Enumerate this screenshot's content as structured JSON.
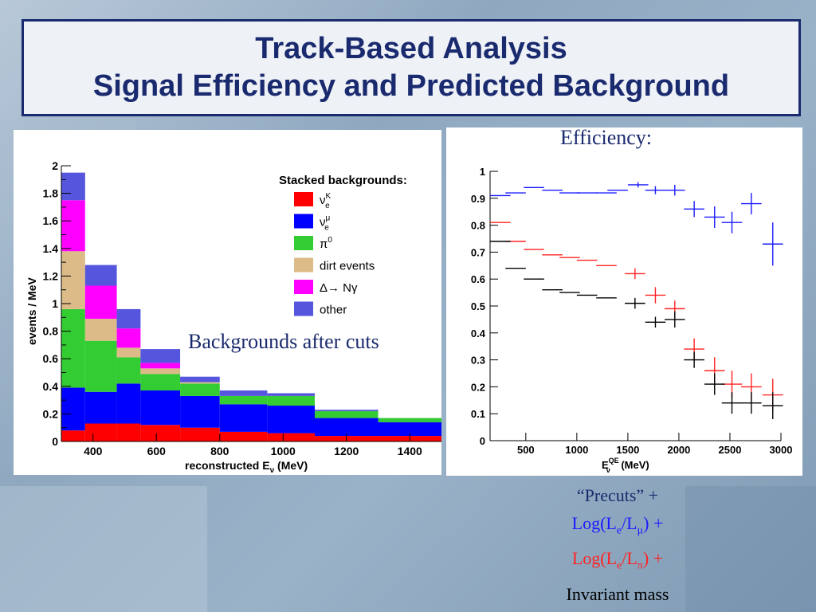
{
  "slide": {
    "title_line1": "Track-Based Analysis",
    "title_line2": "Signal Efficiency and Predicted Background"
  },
  "labels": {
    "efficiency": "Efficiency:",
    "backgrounds": "Backgrounds after cuts",
    "precuts": "“Precuts” +",
    "log_mu_pre": "Log(L",
    "log_mu_e": "e",
    "log_mu_mid": "/L",
    "log_mu_sub": "μ",
    "log_mu_post": ") +",
    "log_pi_pre": "Log(L",
    "log_pi_e": "e",
    "log_pi_mid": "/L",
    "log_pi_sub": "π",
    "log_pi_post": ") +",
    "invariant": "Invariant mass"
  },
  "colors": {
    "title": "#1a2a6e",
    "nue_K": "#ff0000",
    "nue_mu": "#0000ff",
    "pi0": "#33cc33",
    "dirt": "#ddbb88",
    "delta": "#ff00ff",
    "other": "#5555dd",
    "eff_blue": "#1a1aff",
    "eff_red": "#ff2222",
    "eff_black": "#000000"
  },
  "chart_data": [
    {
      "type": "bar",
      "stacked": true,
      "xlabel": "reconstructed E",
      "xlabel_sub": "ν",
      "xlabel_unit": " (MeV)",
      "ylabel": "events / MeV",
      "xlim": [
        300,
        1500
      ],
      "ylim": [
        0,
        2.0
      ],
      "xticks": [
        "400",
        "600",
        "800",
        "1000",
        "1200",
        "1400"
      ],
      "yticks": [
        "0",
        "0.2",
        "0.4",
        "0.6",
        "0.8",
        "1",
        "1.2",
        "1.4",
        "1.6",
        "1.8",
        "2"
      ],
      "legend_title": "Stacked backgrounds:",
      "legend_position": "top-right",
      "bin_edges": [
        300,
        375,
        475,
        550,
        675,
        800,
        950,
        1100,
        1300,
        1500
      ],
      "series": [
        {
          "name": "ν_e^K",
          "legend_main": "ν",
          "legend_sub": "e",
          "legend_sup": "K",
          "values": [
            0.08,
            0.13,
            0.13,
            0.12,
            0.1,
            0.07,
            0.06,
            0.04,
            0.04
          ]
        },
        {
          "name": "ν_e^μ",
          "legend_main": "ν",
          "legend_sub": "e",
          "legend_sup": "μ",
          "values": [
            0.31,
            0.23,
            0.29,
            0.25,
            0.23,
            0.2,
            0.2,
            0.13,
            0.1
          ]
        },
        {
          "name": "π0",
          "legend_main": "π",
          "legend_sub": "",
          "legend_sup": "0",
          "values": [
            0.57,
            0.37,
            0.19,
            0.12,
            0.09,
            0.06,
            0.07,
            0.05,
            0.03
          ]
        },
        {
          "name": "dirt events",
          "legend_main": "dirt events",
          "legend_sub": "",
          "legend_sup": "",
          "values": [
            0.42,
            0.16,
            0.07,
            0.04,
            0.01,
            0.0,
            0.0,
            0.0,
            0.0
          ]
        },
        {
          "name": "Δ→ Nγ",
          "legend_main": "Δ→ Nγ",
          "legend_sub": "",
          "legend_sup": "",
          "values": [
            0.37,
            0.24,
            0.14,
            0.04,
            0.0,
            0.0,
            0.0,
            0.0,
            0.0
          ]
        },
        {
          "name": "other",
          "legend_main": "other",
          "legend_sub": "",
          "legend_sup": "",
          "values": [
            0.2,
            0.15,
            0.14,
            0.1,
            0.04,
            0.04,
            0.02,
            0.01,
            0.0
          ]
        }
      ]
    },
    {
      "type": "scatter",
      "error_bars": true,
      "xlabel": "E",
      "xlabel_sub": "ν",
      "xlabel_sup": "QE",
      "xlabel_unit": " (MeV)",
      "xlim": [
        150,
        3000
      ],
      "ylim": [
        0,
        1.0
      ],
      "xticks": [
        "500",
        "1000",
        "1500",
        "2000",
        "2500",
        "3000"
      ],
      "yticks": [
        "0",
        "0.1",
        "0.2",
        "0.3",
        "0.4",
        "0.5",
        "0.6",
        "0.7",
        "0.8",
        "0.9",
        "1"
      ],
      "series": [
        {
          "color": "#1a1aff",
          "points": [
            [
              250,
              0.91,
              0.0,
              100
            ],
            [
              400,
              0.92,
              0.0,
              100
            ],
            [
              580,
              0.94,
              0.0,
              100
            ],
            [
              760,
              0.93,
              0.0,
              100
            ],
            [
              930,
              0.92,
              0.0,
              100
            ],
            [
              1100,
              0.92,
              0.0,
              100
            ],
            [
              1290,
              0.92,
              0.0,
              100
            ],
            [
              1400,
              0.93,
              0.0,
              100
            ],
            [
              1600,
              0.95,
              0.01,
              100
            ],
            [
              1770,
              0.93,
              0.015,
              100
            ],
            [
              1960,
              0.93,
              0.02,
              100
            ],
            [
              2150,
              0.86,
              0.03,
              100
            ],
            [
              2350,
              0.83,
              0.04,
              100
            ],
            [
              2520,
              0.81,
              0.04,
              100
            ],
            [
              2710,
              0.88,
              0.04,
              100
            ],
            [
              2920,
              0.73,
              0.08,
              100
            ]
          ]
        },
        {
          "color": "#ff2222",
          "points": [
            [
              250,
              0.81,
              0.0,
              100
            ],
            [
              400,
              0.74,
              0.0,
              100
            ],
            [
              580,
              0.71,
              0.0,
              100
            ],
            [
              760,
              0.69,
              0.0,
              100
            ],
            [
              930,
              0.68,
              0.0,
              100
            ],
            [
              1100,
              0.67,
              0.0,
              100
            ],
            [
              1290,
              0.65,
              0.0,
              100
            ],
            [
              1570,
              0.62,
              0.02,
              100
            ],
            [
              1770,
              0.54,
              0.03,
              100
            ],
            [
              1960,
              0.49,
              0.03,
              100
            ],
            [
              2150,
              0.34,
              0.04,
              100
            ],
            [
              2350,
              0.26,
              0.05,
              100
            ],
            [
              2520,
              0.21,
              0.05,
              100
            ],
            [
              2710,
              0.2,
              0.05,
              100
            ],
            [
              2920,
              0.17,
              0.06,
              100
            ]
          ]
        },
        {
          "color": "#000000",
          "points": [
            [
              250,
              0.74,
              0.0,
              100
            ],
            [
              400,
              0.64,
              0.0,
              100
            ],
            [
              580,
              0.6,
              0.0,
              100
            ],
            [
              760,
              0.56,
              0.0,
              100
            ],
            [
              930,
              0.55,
              0.0,
              100
            ],
            [
              1100,
              0.54,
              0.0,
              100
            ],
            [
              1290,
              0.53,
              0.0,
              100
            ],
            [
              1570,
              0.51,
              0.02,
              100
            ],
            [
              1770,
              0.44,
              0.02,
              100
            ],
            [
              1960,
              0.45,
              0.03,
              100
            ],
            [
              2150,
              0.3,
              0.03,
              100
            ],
            [
              2350,
              0.21,
              0.04,
              100
            ],
            [
              2520,
              0.14,
              0.04,
              100
            ],
            [
              2710,
              0.14,
              0.04,
              100
            ],
            [
              2920,
              0.13,
              0.05,
              100
            ]
          ]
        }
      ]
    }
  ]
}
